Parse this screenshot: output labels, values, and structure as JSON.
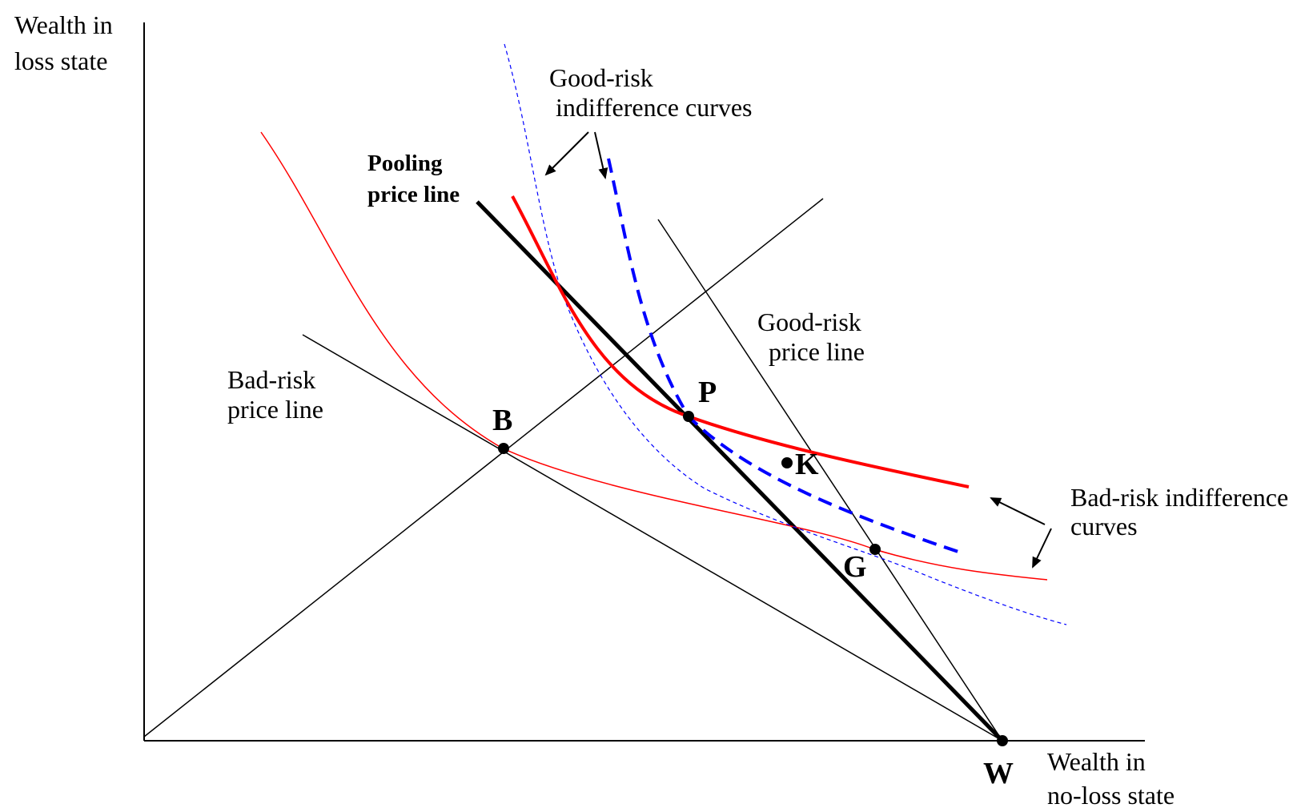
{
  "axes": {
    "y_label": [
      "Wealth in",
      "loss state"
    ],
    "x_label": [
      "Wealth in",
      "no-loss state"
    ]
  },
  "labels": {
    "good_risk_indifference": [
      "Good-risk",
      "indifference curves"
    ],
    "pooling_price_line": [
      "Pooling",
      "price line"
    ],
    "good_risk_price_line": [
      "Good-risk",
      "price line"
    ],
    "bad_risk_price_line": [
      "Bad-risk",
      "price line"
    ],
    "bad_risk_indifference": [
      "Bad-risk indifference",
      "curves"
    ]
  },
  "points": {
    "B": "B",
    "P": "P",
    "K": "K",
    "G": "G",
    "W": "W"
  },
  "colors": {
    "axis": "#000000",
    "bad_risk_curve": "#ff0000",
    "good_risk_curve": "#0000ff",
    "price_line": "#000000"
  }
}
